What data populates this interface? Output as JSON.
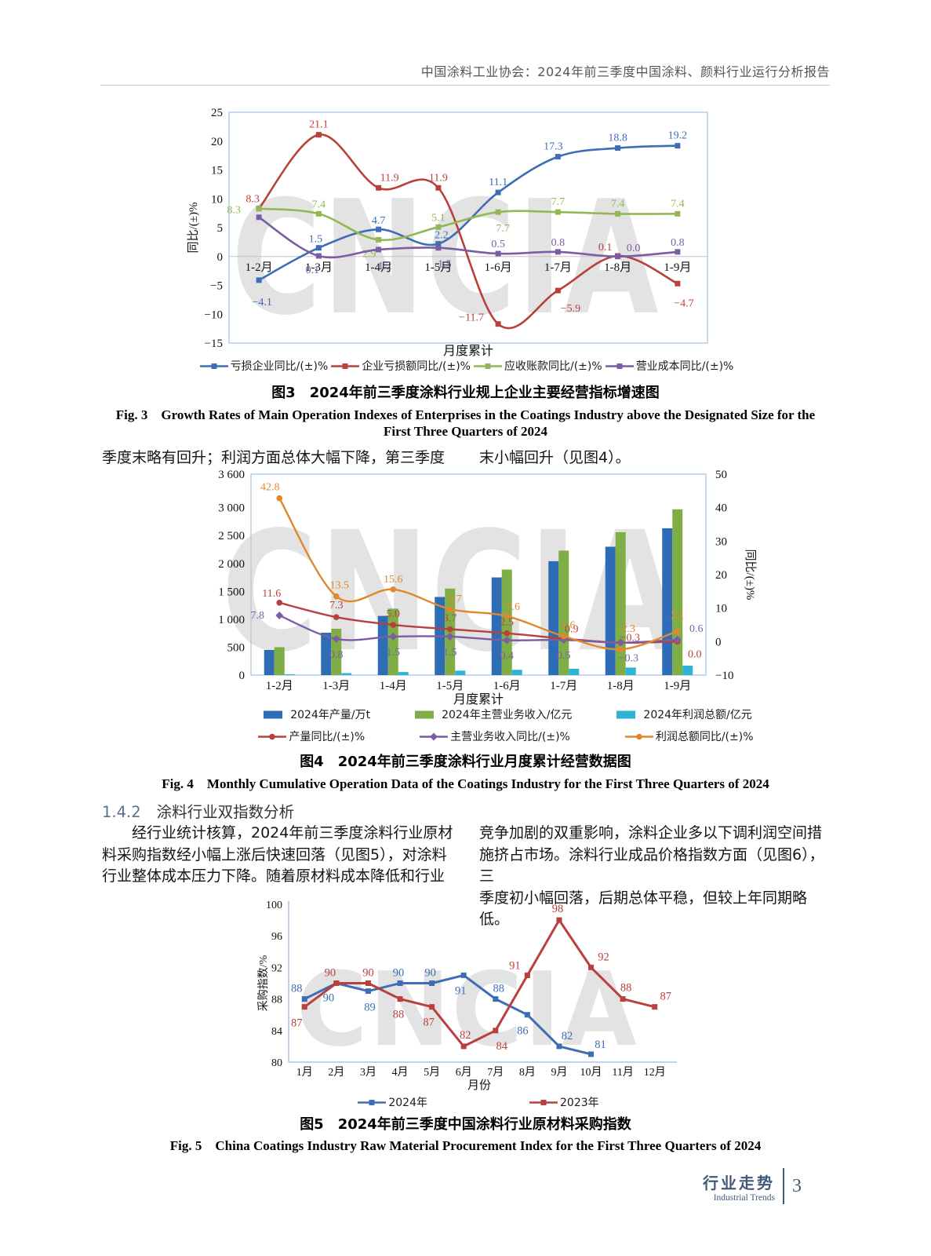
{
  "header": {
    "title": "中国涂料工业协会：2024年前三季度中国涂料、颜料行业运行分析报告"
  },
  "watermark": {
    "text": "CNCIA"
  },
  "intro": {
    "left": "季度末略有回升；利润方面总体大幅下降，第三季度",
    "right": "末小幅回升（见图4）。"
  },
  "figures": {
    "fig3": {
      "caption_cn": "图3　2024年前三季度涂料行业规上企业主要经营指标增速图",
      "caption_en_1": "Fig. 3　Growth Rates of Main Operation Indexes of Enterprises in the Coatings Industry above the Designated Size for the",
      "caption_en_2": "First Three Quarters of 2024"
    },
    "fig4": {
      "caption_cn": "图4　2024年前三季度涂料行业月度累计经营数据图",
      "caption_en": "Fig. 4　Monthly Cumulative Operation Data of the Coatings Industry for the First Three Quarters of 2024"
    },
    "fig5": {
      "caption_cn": "图5　2024年前三季度中国涂料行业原材料采购指数",
      "caption_en": "Fig. 5　China Coatings Industry Raw Material Procurement Index for the First Three Quarters of 2024"
    }
  },
  "section": {
    "number": "1.4.2",
    "title": "涂料行业双指数分析",
    "col_left": [
      "　　经行业统计核算，2024年前三季度涂料行业原材",
      "料采购指数经小幅上涨后快速回落（见图5），对涂料",
      "行业整体成本压力下降。随着原材料成本降低和行业"
    ],
    "col_right": [
      "竞争加剧的双重影响，涂料企业多以下调利润空间措",
      "施挤占市场。涂料行业成品价格指数方面（见图6），三",
      "季度初小幅回落，后期总体平稳，但较上年同期略低。"
    ]
  },
  "footer": {
    "label_cn": "行业走势",
    "label_en": "Industrial Trends",
    "page": "3"
  },
  "chart_data": [
    {
      "id": "fig3",
      "type": "line",
      "xlabel": "月度累计",
      "ylabel": "同比/(±)%",
      "ylim": [
        -15,
        25
      ],
      "yticks": [
        25,
        20,
        15,
        10,
        5,
        0,
        -5,
        -10,
        -15
      ],
      "ytick_labels": [
        "25",
        "20",
        "15",
        "10",
        "5",
        "0",
        "−5",
        "−10",
        "−15"
      ],
      "categories": [
        "1-2月",
        "1-3月",
        "1-4月",
        "1-5月",
        "1-6月",
        "1-7月",
        "1-8月",
        "1-9月"
      ],
      "grid": "zero-line-only",
      "legend_position": "bottom",
      "series": [
        {
          "name": "亏损企业同比/(±)%",
          "kind": "line",
          "marker": "square",
          "color": "#3d6eb5",
          "values": [
            -4.1,
            1.5,
            4.7,
            2.2,
            11.1,
            17.3,
            18.8,
            19.2
          ],
          "labels": [
            "−4.1",
            "1.5",
            "4.7",
            "2.2",
            "11.1",
            "17.3",
            "18.8",
            "19.2"
          ],
          "label_offsets": [
            [
              4,
              28
            ],
            [
              -4,
              -11
            ],
            [
              0,
              -11
            ],
            [
              4,
              -11
            ],
            [
              0,
              -13
            ],
            [
              -6,
              -13
            ],
            [
              0,
              -13
            ],
            [
              0,
              -13
            ]
          ]
        },
        {
          "name": "企业亏损额同比/(±)%",
          "kind": "line",
          "marker": "square",
          "color": "#b8403d",
          "values": [
            8.3,
            21.1,
            11.9,
            11.9,
            -11.7,
            -5.9,
            0.1,
            -4.7
          ],
          "labels": [
            "8.3",
            "21.1",
            "11.9",
            "11.9",
            "−11.7",
            "−5.9",
            "0.1",
            "−4.7"
          ],
          "label_offsets": [
            [
              -8,
              -12
            ],
            [
              0,
              -13
            ],
            [
              14,
              -13
            ],
            [
              0,
              -13
            ],
            [
              -34,
              -8
            ],
            [
              16,
              23
            ],
            [
              -16,
              -11
            ],
            [
              8,
              25
            ]
          ]
        },
        {
          "name": "应收账款同比/(±)%",
          "kind": "line",
          "marker": "square",
          "color": "#93b755",
          "values": [
            8.3,
            7.4,
            2.9,
            5.1,
            7.7,
            7.7,
            7.4,
            7.4
          ],
          "labels": [
            "8.3",
            "7.4",
            "2.9",
            "5.1",
            "7.7",
            "7.7",
            "7.4",
            "7.4"
          ],
          "label_offsets": [
            [
              -32,
              2
            ],
            [
              0,
              -12
            ],
            [
              -12,
              18
            ],
            [
              0,
              -12
            ],
            [
              6,
              21
            ],
            [
              0,
              -13
            ],
            [
              0,
              -13
            ],
            [
              0,
              -13
            ]
          ]
        },
        {
          "name": "营业成本同比/(±)%",
          "kind": "line",
          "marker": "square",
          "color": "#7a5da5",
          "values": [
            6.8,
            0.1,
            1.2,
            1.5,
            0.5,
            0.8,
            0.0,
            0.8
          ],
          "labels": [
            null,
            "0.1",
            "1.2",
            "1.5",
            "0.5",
            "0.8",
            "0.0",
            "0.8"
          ],
          "label_offsets": [
            null,
            [
              -8,
              18
            ],
            [
              8,
              21
            ],
            [
              8,
              21
            ],
            [
              0,
              -12
            ],
            [
              0,
              -12
            ],
            [
              20,
              -11
            ],
            [
              0,
              -12
            ]
          ]
        }
      ]
    },
    {
      "id": "fig4",
      "type": "bar",
      "xlabel": "月度累计",
      "ylabel": "",
      "y2label": "同比/(±)%",
      "ylim": [
        0,
        3600
      ],
      "yticks": [
        3600,
        3000,
        2500,
        2000,
        1500,
        1000,
        500,
        0
      ],
      "ytick_labels": [
        "3 600",
        "3 000",
        "2 500",
        "2 000",
        "1 500",
        "1 000",
        "500",
        "0"
      ],
      "y2": {
        "ylim": [
          -10,
          50
        ],
        "yticks": [
          50,
          40,
          30,
          20,
          10,
          0,
          -10
        ],
        "ytick_labels": [
          "50",
          "40",
          "30",
          "20",
          "10",
          "0",
          "−10"
        ]
      },
      "categories": [
        "1-2月",
        "1-3月",
        "1-4月",
        "1-5月",
        "1-6月",
        "1-7月",
        "1-8月",
        "1-9月"
      ],
      "grid": "off",
      "legend_position": "bottom-two-rows",
      "series": [
        {
          "name": "2024年产量/万t",
          "kind": "bar",
          "color": "#2e6db5",
          "values": [
            450,
            760,
            1060,
            1400,
            1750,
            2040,
            2300,
            2630
          ]
        },
        {
          "name": "2024年主营业务收入/亿元",
          "kind": "bar",
          "color": "#80ae46",
          "values": [
            500,
            830,
            1190,
            1550,
            1890,
            2230,
            2560,
            2970
          ]
        },
        {
          "name": "2024年利润总额/亿元",
          "kind": "bar",
          "color": "#2fb3d4",
          "values": [
            15,
            35,
            55,
            80,
            95,
            115,
            135,
            170
          ]
        },
        {
          "name": "产量同比/(±)%",
          "kind": "line",
          "axis": "right",
          "marker": "circle",
          "color": "#b8403d",
          "values": [
            11.6,
            7.3,
            5.0,
            3.7,
            2.5,
            0.9,
            -0.3,
            0.0
          ],
          "labels": [
            "11.6",
            "7.3",
            "5.0",
            "3.7",
            "2.5",
            "0.9",
            "−0.3",
            "0.0"
          ],
          "label_offsets": [
            [
              -10,
              -12
            ],
            [
              0,
              -15
            ],
            [
              0,
              -14
            ],
            [
              0,
              -14
            ],
            [
              0,
              -14
            ],
            [
              10,
              -12
            ],
            [
              12,
              -6
            ],
            [
              22,
              16
            ]
          ]
        },
        {
          "name": "主营业务收入同比/(±)%",
          "kind": "line",
          "axis": "right",
          "marker": "diamond",
          "color": "#7a5da5",
          "values": [
            7.8,
            0.8,
            1.5,
            1.5,
            0.4,
            0.5,
            -0.3,
            0.6
          ],
          "labels": [
            "7.8",
            "0.8",
            "1.5",
            "1.5",
            "0.4",
            "0.5",
            "−0.3",
            "0.6"
          ],
          "label_offsets": [
            [
              -28,
              0
            ],
            [
              0,
              20
            ],
            [
              0,
              20
            ],
            [
              0,
              20
            ],
            [
              0,
              20
            ],
            [
              0,
              20
            ],
            [
              10,
              20
            ],
            [
              24,
              -14
            ]
          ]
        },
        {
          "name": "利润总额同比/(±)%",
          "kind": "line",
          "axis": "right",
          "marker": "circle",
          "color": "#e1882f",
          "values": [
            42.8,
            13.5,
            15.6,
            9.7,
            7.6,
            1.6,
            -2.3,
            3.1
          ],
          "labels": [
            "42.8",
            "13.5",
            "15.6",
            "9.7",
            "7.6",
            "1.6",
            "−2.3",
            "3.1"
          ],
          "label_offsets": [
            [
              -12,
              -14
            ],
            [
              4,
              -14
            ],
            [
              0,
              -13
            ],
            [
              6,
              -13
            ],
            [
              8,
              -12
            ],
            [
              6,
              -14
            ],
            [
              6,
              -26
            ],
            [
              0,
              -20
            ]
          ]
        }
      ]
    },
    {
      "id": "fig5",
      "type": "line",
      "xlabel": "月份",
      "ylabel": "采购指数/%",
      "ylim": [
        80,
        100
      ],
      "yticks": [
        100,
        96,
        92,
        88,
        84,
        80
      ],
      "ytick_labels": [
        "100",
        "96",
        "92",
        "88",
        "84",
        "80"
      ],
      "categories": [
        "1月",
        "2月",
        "3月",
        "4月",
        "5月",
        "6月",
        "7月",
        "8月",
        "9月",
        "10月",
        "11月",
        "12月"
      ],
      "grid": "off",
      "legend_position": "bottom",
      "series": [
        {
          "name": "2024年",
          "kind": "line",
          "marker": "square",
          "color": "#3d6eb5",
          "values": [
            88,
            90,
            89,
            90,
            90,
            91,
            88,
            86,
            82,
            81,
            null,
            null
          ],
          "labels": [
            "88",
            "90",
            "89",
            "90",
            "90",
            "91",
            "88",
            "86",
            "82",
            "81",
            null,
            null
          ],
          "label_offsets": [
            [
              -10,
              -13
            ],
            [
              -10,
              19
            ],
            [
              2,
              21
            ],
            [
              -2,
              -13
            ],
            [
              -2,
              -13
            ],
            [
              -4,
              20
            ],
            [
              4,
              -13
            ],
            [
              -6,
              21
            ],
            [
              10,
              -13
            ],
            [
              12,
              -12
            ],
            null,
            null
          ]
        },
        {
          "name": "2023年",
          "kind": "line",
          "marker": "square",
          "color": "#b8403d",
          "values": [
            87,
            90,
            90,
            88,
            87,
            82,
            84,
            91,
            98,
            92,
            88,
            87
          ],
          "labels": [
            "87",
            "90",
            "90",
            "88",
            "87",
            "82",
            "84",
            "91",
            "98",
            "92",
            "88",
            "87"
          ],
          "label_offsets": [
            [
              -10,
              21
            ],
            [
              -8,
              -13
            ],
            [
              0,
              -13
            ],
            [
              -2,
              20
            ],
            [
              -4,
              20
            ],
            [
              2,
              -14
            ],
            [
              8,
              20
            ],
            [
              -16,
              -12
            ],
            [
              -2,
              -14
            ],
            [
              16,
              -13
            ],
            [
              4,
              -14
            ],
            [
              14,
              -13
            ]
          ]
        }
      ]
    }
  ]
}
